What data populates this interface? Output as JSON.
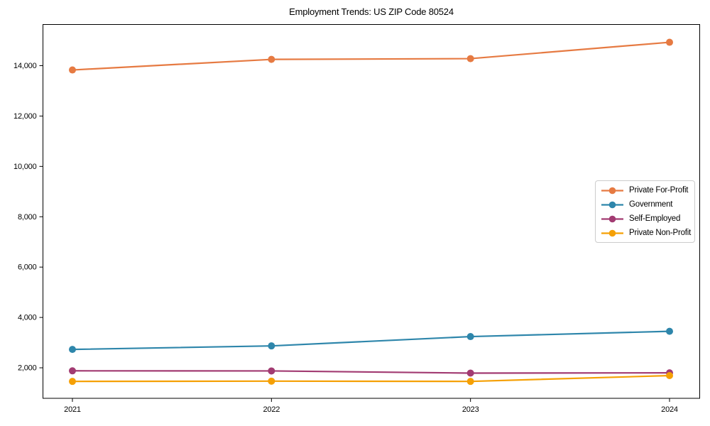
{
  "chart_data": {
    "type": "line",
    "title": "Employment Trends: US ZIP Code 80524",
    "xlabel": "",
    "ylabel": "",
    "categories": [
      "2021",
      "2022",
      "2023",
      "2024"
    ],
    "series": [
      {
        "name": "Private For-Profit",
        "color": "#E67A42",
        "values": [
          13830,
          14250,
          14280,
          14930
        ]
      },
      {
        "name": "Government",
        "color": "#2E86AB",
        "values": [
          2730,
          2870,
          3240,
          3450
        ]
      },
      {
        "name": "Self-Employed",
        "color": "#A23B72",
        "values": [
          1880,
          1875,
          1790,
          1800
        ]
      },
      {
        "name": "Private Non-Profit",
        "color": "#F5A005",
        "values": [
          1460,
          1470,
          1460,
          1690
        ]
      }
    ],
    "y_ticks": [
      2000,
      4000,
      6000,
      8000,
      10000,
      12000,
      14000
    ],
    "y_tick_labels": [
      "2,000",
      "4,000",
      "6,000",
      "8,000",
      "10,000",
      "12,000",
      "14,000"
    ],
    "ylim": [
      788,
      15636
    ],
    "grid": false,
    "legend_position": "center-right",
    "marker_style": "circle",
    "axis_color": "#000000",
    "background_color": "#ffffff"
  }
}
